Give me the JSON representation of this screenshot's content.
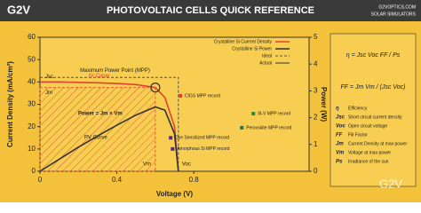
{
  "header": {
    "brand": "G2V",
    "title": "PHOTOVOLTAIC CELLS QUICK REFERENCE",
    "site": "G2VOPTICS.COM",
    "tagline": "SOLAR SIMULATORS",
    "watermark": "G2V"
  },
  "chart_data": {
    "type": "line",
    "xlabel": "Voltage (V)",
    "ylabel": "Current Density (mA/cm²)",
    "y2label": "Power (W)",
    "xlim": [
      0,
      1.4
    ],
    "xticks": [
      0,
      0.4,
      0.8
    ],
    "ylim": [
      0,
      60
    ],
    "yticks": [
      0,
      10,
      20,
      30,
      40,
      50,
      60
    ],
    "y2lim": [
      0,
      5
    ],
    "y2ticks": [
      0,
      1,
      2,
      3,
      4,
      5
    ],
    "x": [
      0,
      0.1,
      0.2,
      0.3,
      0.4,
      0.5,
      0.6,
      0.65,
      0.7,
      0.72
    ],
    "series": [
      {
        "name": "Crystalline Si Current Density",
        "color": "#e0442f",
        "values": [
          40,
          40,
          39.8,
          39.6,
          39.3,
          38.8,
          37.5,
          33,
          20,
          0
        ]
      },
      {
        "name": "Crystalline Si Power",
        "color": "#333333",
        "axis": "y2",
        "values": [
          0,
          0.45,
          0.9,
          1.32,
          1.72,
          2.1,
          2.4,
          2.28,
          1.4,
          0
        ]
      }
    ],
    "ideal": {
      "name": "Ideal",
      "x": [
        0,
        0.72,
        0.72
      ],
      "values": [
        42,
        42,
        0
      ]
    },
    "actual": {
      "name": "Actual"
    },
    "mpp": {
      "label": "Maximum Power Point (MPP)",
      "x": 0.6,
      "y": 37.5
    },
    "records": [
      {
        "name": "CIGS MPP record",
        "color": "#e0442f",
        "x": 0.73,
        "y": 33.8
      },
      {
        "name": "III-V MPP record",
        "color": "#2a8a3a",
        "x": 1.11,
        "y": 25.8
      },
      {
        "name": "Perovskite MPP record",
        "color": "#1f7a5a",
        "x": 1.05,
        "y": 19.5
      },
      {
        "name": "Dye Sensitized MPP record",
        "color": "#5b2a86",
        "x": 0.68,
        "y": 15
      },
      {
        "name": "Amorphous Si MPP record",
        "color": "#5b2a86",
        "x": 0.69,
        "y": 10
      }
    ],
    "annotations": {
      "iv": "IV Curve",
      "pv": "PV Curve",
      "power": "Power = Jm × Vm",
      "jsc": "Jsc",
      "jm": "Jm",
      "vm": "Vm",
      "voc": "Voc"
    }
  },
  "formulas": {
    "eta": "η = Jsc Voc FF / Ps",
    "ff": "FF = Jm Vm / (Jsc Voc)",
    "glossary": [
      {
        "symbol": "η",
        "text": "Efficiency"
      },
      {
        "symbol": "Jsc",
        "text": "Short circuit current density"
      },
      {
        "symbol": "Voc",
        "text": "Open circuit voltage"
      },
      {
        "symbol": "FF",
        "text": "Fill Factor"
      },
      {
        "symbol": "Jm",
        "text": "Current Density at max power"
      },
      {
        "symbol": "Vm",
        "text": "Voltage at max power"
      },
      {
        "symbol": "Ps",
        "text": "Irradiance of the sun"
      }
    ]
  }
}
